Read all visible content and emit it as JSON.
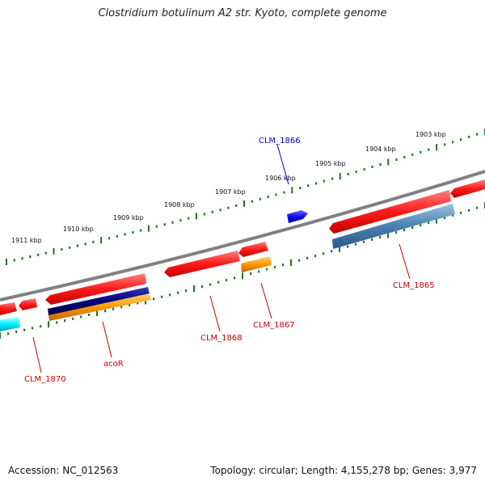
{
  "title": "Clostridium botulinum A2 str. Kyoto, complete genome",
  "footer": {
    "accession": "Accession: NC_012563",
    "info": "Topology: circular; Length: 4,155,278 bp; Genes: 3,977"
  },
  "colors": {
    "backbone": "#808080",
    "tick": "#1a7a1a",
    "gene_red": "#ff1a1a",
    "gene_red_label": "#cc0000",
    "gene_blue": "#0a0aee",
    "gene_blue_label": "#0000cc",
    "gene_orange": "#ff9900",
    "gene_navy": "#000080",
    "gene_steelblue": "#4a7fb0",
    "gene_cyan": "#00eeff"
  },
  "ruler": {
    "labels": [
      "1903 kbp",
      "1904 kbp",
      "1905 kbp",
      "1906 kbp",
      "1907 kbp",
      "1908 kbp",
      "1909 kbp",
      "1910 kbp",
      "1911 kbp"
    ]
  },
  "gene_labels": {
    "clm_1866": "CLM_1866",
    "clm_1865": "CLM_1865",
    "clm_1867": "CLM_1867",
    "clm_1868": "CLM_1868",
    "acor": "acoR",
    "clm_1870": "CLM_1870"
  }
}
